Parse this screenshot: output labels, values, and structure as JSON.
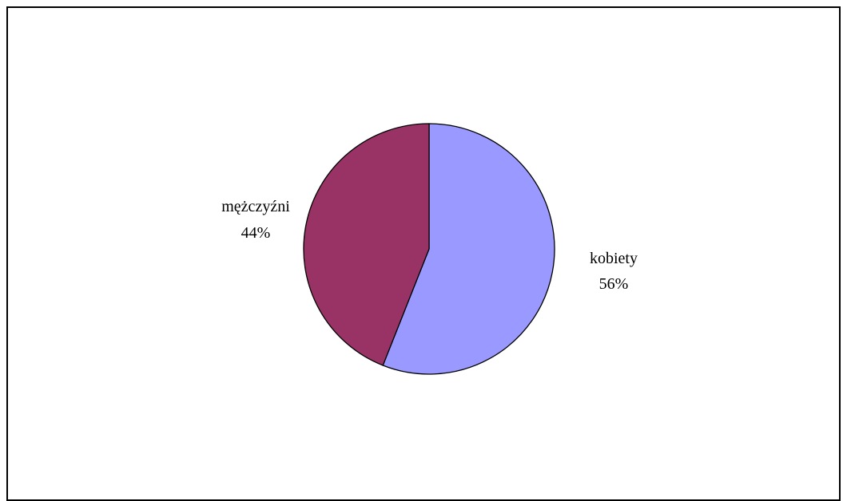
{
  "chart_data": {
    "type": "pie",
    "title": "",
    "legend": "none",
    "slices": [
      {
        "label": "kobiety",
        "value": 56,
        "value_label": "56%",
        "color": "#9999ff"
      },
      {
        "label": "mężczyźni",
        "value": 44,
        "value_label": "44%",
        "color": "#993366"
      }
    ],
    "outline_color": "#000000",
    "background": "#ffffff"
  }
}
